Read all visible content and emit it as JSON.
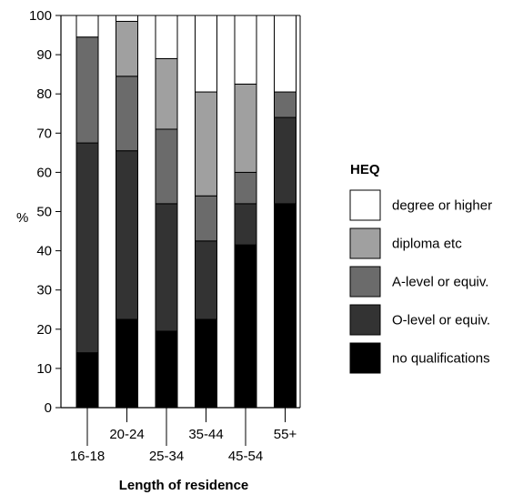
{
  "chart_data": {
    "type": "bar",
    "stacked": true,
    "categories": [
      "16-18",
      "20-24",
      "25-34",
      "35-44",
      "45-54",
      "55+"
    ],
    "xlabel": "Length of residence",
    "ylabel": "%",
    "ylim": [
      0,
      100
    ],
    "yticks": [
      0,
      10,
      20,
      30,
      40,
      50,
      60,
      70,
      80,
      90,
      100
    ],
    "grid": false,
    "legend": {
      "title": "HEQ",
      "placement": "right",
      "order": [
        "degree or higher",
        "diploma etc",
        "A-level or equiv.",
        "O-level or equiv.",
        "no qualifications"
      ]
    },
    "series": [
      {
        "name": "no qualifications",
        "color": "#000000",
        "values": [
          14,
          22.5,
          19.5,
          22.5,
          41.5,
          52
        ]
      },
      {
        "name": "O-level or equiv.",
        "color": "#333333",
        "values": [
          53.5,
          43,
          32.5,
          20,
          10.5,
          22
        ]
      },
      {
        "name": "A-level or equiv.",
        "color": "#6b6b6b",
        "values": [
          27,
          19,
          19,
          11.5,
          8,
          6.5
        ]
      },
      {
        "name": "diploma etc",
        "color": "#a0a0a0",
        "values": [
          0,
          14,
          18,
          26.5,
          22.5,
          0
        ]
      },
      {
        "name": "degree or higher",
        "color": "#ffffff",
        "values": [
          5.5,
          1.5,
          11,
          19.5,
          17.5,
          19.5
        ]
      }
    ]
  }
}
